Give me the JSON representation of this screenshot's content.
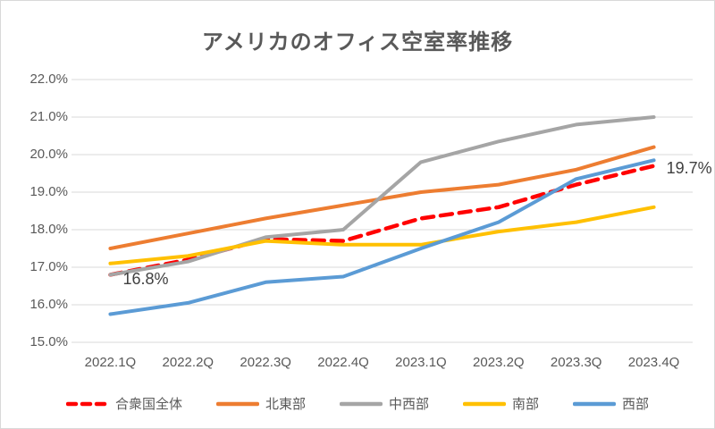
{
  "chart_data": {
    "type": "line",
    "title": "アメリカのオフィス空室率推移",
    "categories": [
      "2022.1Q",
      "2022.2Q",
      "2022.3Q",
      "2022.4Q",
      "2023.1Q",
      "2023.2Q",
      "2023.3Q",
      "2023.4Q"
    ],
    "series": [
      {
        "key": "us-total",
        "name": "合衆国全体",
        "color": "#FF0000",
        "dashed": true,
        "values": [
          16.8,
          17.2,
          17.75,
          17.7,
          18.3,
          18.6,
          19.2,
          19.7
        ]
      },
      {
        "key": "northeast",
        "name": "北東部",
        "color": "#ED7D31",
        "dashed": false,
        "values": [
          17.5,
          17.9,
          18.3,
          18.65,
          19.0,
          19.2,
          19.6,
          20.2
        ]
      },
      {
        "key": "midwest",
        "name": "中西部",
        "color": "#A5A5A5",
        "dashed": false,
        "values": [
          16.8,
          17.15,
          17.8,
          18.0,
          19.8,
          20.35,
          20.8,
          21.0
        ]
      },
      {
        "key": "south",
        "name": "南部",
        "color": "#FFC000",
        "dashed": false,
        "values": [
          17.1,
          17.3,
          17.7,
          17.6,
          17.6,
          17.95,
          18.2,
          18.6
        ]
      },
      {
        "key": "west",
        "name": "西部",
        "color": "#5B9BD5",
        "dashed": false,
        "values": [
          15.75,
          16.05,
          16.6,
          16.75,
          17.5,
          18.2,
          19.35,
          19.85
        ]
      }
    ],
    "ylim": [
      15.0,
      22.0
    ],
    "ytick_step": 1.0,
    "ytick_labels": [
      "15.0%",
      "16.0%",
      "17.0%",
      "18.0%",
      "19.0%",
      "20.0%",
      "21.0%",
      "22.0%"
    ],
    "grid": true,
    "legend_position": "bottom",
    "annotations": [
      {
        "text": "16.8%",
        "series_index": 0,
        "point_index": 0
      },
      {
        "text": "19.7%",
        "series_index": 0,
        "point_index": 7
      }
    ],
    "colors": {
      "gridline": "#D9D9D9",
      "axis_text": "#595959",
      "title_text": "#595959",
      "annotation_text": "#404040",
      "background": "#FFFFFF"
    }
  }
}
